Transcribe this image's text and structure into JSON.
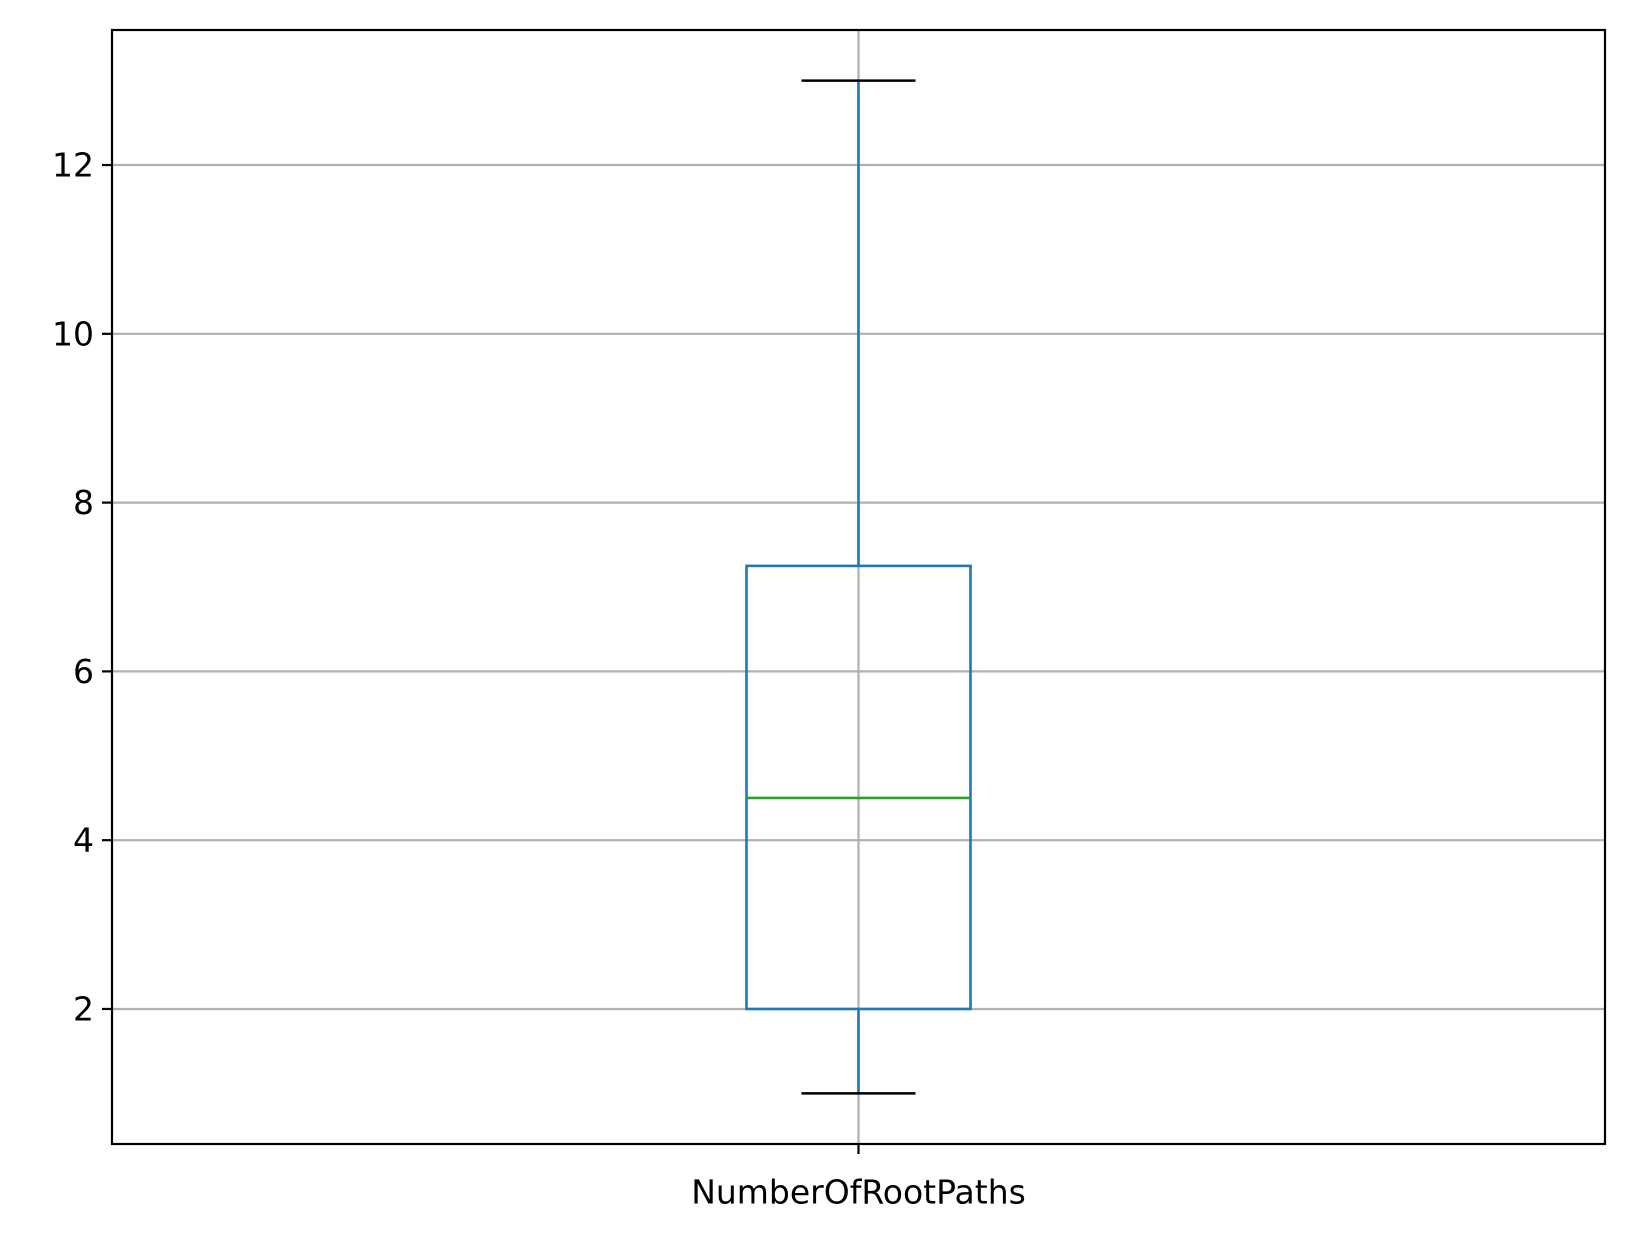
{
  "chart_data": {
    "type": "box",
    "categories": [
      "NumberOfRootPaths"
    ],
    "boxes": [
      {
        "category": "NumberOfRootPaths",
        "whisker_low": 1,
        "q1": 2,
        "median": 4.5,
        "q3": 7.25,
        "whisker_high": 13
      }
    ],
    "y_ticks": [
      2,
      4,
      6,
      8,
      10,
      12
    ],
    "ylim": [
      0.4,
      13.6
    ],
    "title": "",
    "xlabel": "",
    "ylabel": "",
    "grid": true,
    "colors": {
      "box": "#1f77b4",
      "median": "#2ca02c",
      "caps": "#000000",
      "grid": "#b0b0b0",
      "axes": "#000000"
    }
  }
}
